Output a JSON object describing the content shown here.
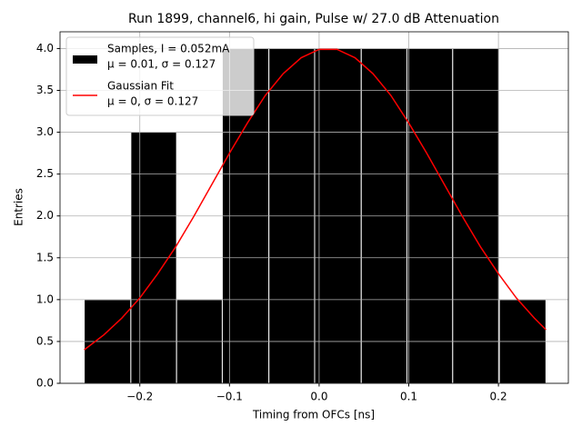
{
  "chart_data": {
    "type": "histogram",
    "title": "Run 1899, channel6, hi gain, Pulse w/ 27.0 dB Attenuation",
    "xlabel": "Timing from OFCs [ns]",
    "ylabel": "Entries",
    "xlim": [
      -0.289,
      0.278
    ],
    "ylim": [
      0,
      4.2
    ],
    "xticks": [
      {
        "value": -0.2,
        "label": "−0.2"
      },
      {
        "value": -0.1,
        "label": "−0.1"
      },
      {
        "value": 0,
        "label": "0.0"
      },
      0.1,
      0.2
    ],
    "yticks": [
      {
        "value": 0,
        "label": "0.0"
      },
      0.5,
      {
        "value": 1,
        "label": "1.0"
      },
      1.5,
      {
        "value": 2,
        "label": "2.0"
      },
      2.5,
      {
        "value": 3,
        "label": "3.0"
      },
      3.5,
      {
        "value": 4,
        "label": "4.0"
      }
    ],
    "grid": true,
    "legend": "upper left",
    "series": [
      {
        "type": "histogram",
        "name": [
          "Samples, I = 0.052mA",
          "μ = 0.01, σ = 0.127"
        ],
        "color": "#000000",
        "bins": [
          -0.262,
          -0.21,
          -0.159,
          -0.108,
          -0.056,
          -0.005,
          0.047,
          0.098,
          0.149,
          0.201,
          0.253
        ],
        "values": [
          1,
          3,
          1,
          4,
          4,
          4,
          4,
          4,
          4,
          1
        ]
      },
      {
        "type": "line",
        "name": [
          "Gaussian Fit",
          "μ = 0, σ = 0.127"
        ],
        "color": "#ff0000",
        "x": [
          -0.262,
          -0.24,
          -0.22,
          -0.2,
          -0.18,
          -0.16,
          -0.14,
          -0.12,
          -0.1,
          -0.08,
          -0.06,
          -0.04,
          -0.02,
          0,
          0.02,
          0.04,
          0.06,
          0.08,
          0.1,
          0.12,
          0.14,
          0.16,
          0.18,
          0.2,
          0.22,
          0.24,
          0.253
        ],
        "values": [
          0.4,
          0.58,
          0.78,
          1.02,
          1.31,
          1.63,
          1.99,
          2.37,
          2.75,
          3.11,
          3.44,
          3.7,
          3.89,
          3.99,
          3.99,
          3.89,
          3.7,
          3.44,
          3.11,
          2.75,
          2.37,
          1.99,
          1.63,
          1.31,
          1.02,
          0.78,
          0.64
        ]
      }
    ]
  }
}
